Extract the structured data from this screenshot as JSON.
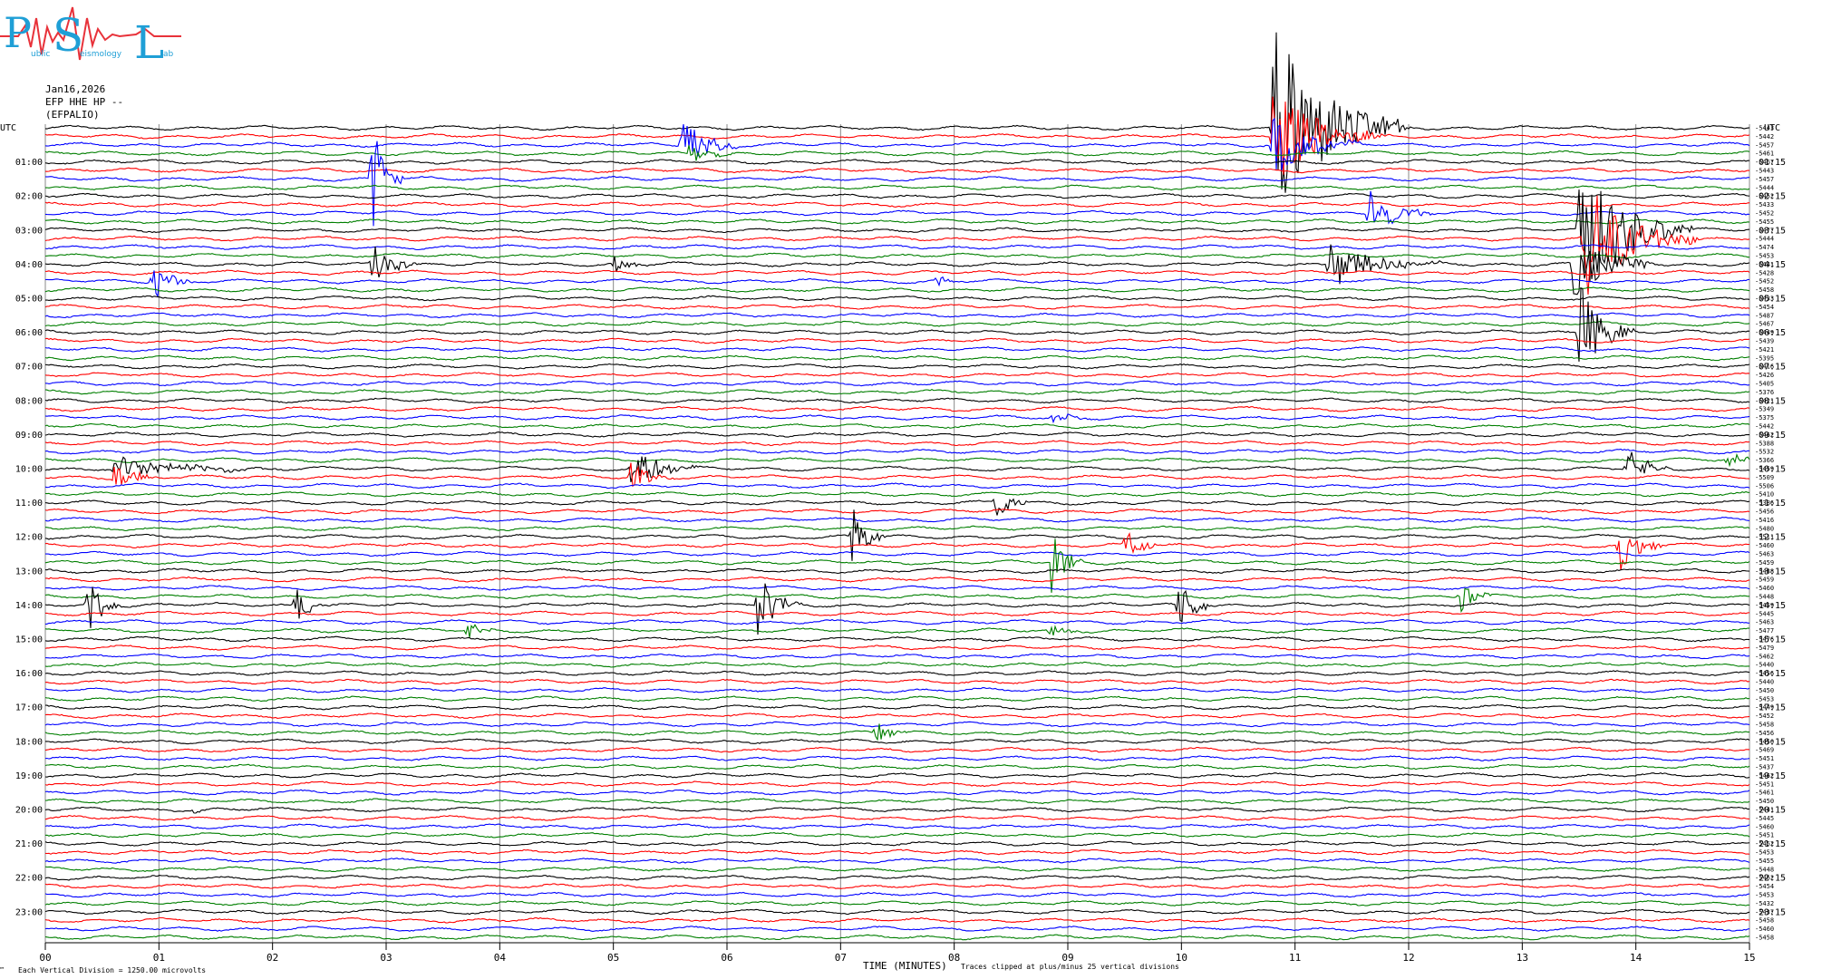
{
  "logo": {
    "letters": [
      "P",
      "S",
      "L"
    ],
    "small_words": [
      "ublic",
      "eismology",
      "ab"
    ],
    "colors": {
      "letters": "#1f9fd6",
      "waveform": "#e8323a"
    }
  },
  "header": {
    "date": "Jan16,2026",
    "channel": "EFP HHE HP --",
    "station": "(EFPALIO)"
  },
  "footer": {
    "scale": "Each Vertical Division = 1250.00 microvolts",
    "xlabel": "TIME (MINUTES)",
    "clip_note": "Traces clipped at plus/minus 25 vertical divisions",
    "corner": "™"
  },
  "colors": {
    "trace_cycle": [
      "#000000",
      "#ff0000",
      "#0000ff",
      "#007f00"
    ],
    "grid": "#888888"
  },
  "chart_data": {
    "type": "line",
    "subtype": "helicorder",
    "xlabel": "TIME (MINUTES)",
    "xlim": [
      0,
      15
    ],
    "xticks": [
      "00",
      "01",
      "02",
      "03",
      "04",
      "05",
      "06",
      "07",
      "08",
      "09",
      "10",
      "11",
      "12",
      "13",
      "14",
      "15"
    ],
    "left_title": "UTC",
    "right_title": "UTC",
    "left_labels": [
      "01:00",
      "02:00",
      "03:00",
      "04:00",
      "05:00",
      "06:00",
      "07:00",
      "08:00",
      "09:00",
      "10:00",
      "11:00",
      "12:00",
      "13:00",
      "14:00",
      "15:00",
      "16:00",
      "17:00",
      "18:00",
      "19:00",
      "20:00",
      "21:00",
      "22:00",
      "23:00"
    ],
    "right_labels": [
      "01:15",
      "02:15",
      "03:15",
      "04:15",
      "05:15",
      "06:15",
      "07:15",
      "08:15",
      "09:15",
      "10:15",
      "11:15",
      "12:15",
      "13:15",
      "14:15",
      "15:15",
      "16:15",
      "17:15",
      "18:15",
      "19:15",
      "20:15",
      "21:15",
      "22:15",
      "23:15"
    ],
    "trace_count": 96,
    "trace_offsets": [
      "-5443",
      "-5442",
      "-5457",
      "-5461",
      "-5467",
      "-5443",
      "-5457",
      "-5444",
      "-5452",
      "-5433",
      "-5452",
      "-5455",
      "-5477",
      "-5444",
      "-5474",
      "-5453",
      "-5441",
      "-5428",
      "-5452",
      "-5458",
      "-5433",
      "-5454",
      "-5487",
      "-5467",
      "-5449",
      "-5439",
      "-5421",
      "-5395",
      "-5416",
      "-5426",
      "-5405",
      "-5376",
      "-5421",
      "-5349",
      "-5375",
      "-5442",
      "-5462",
      "-5388",
      "-5532",
      "-5366",
      "-5459",
      "-5509",
      "-5506",
      "-5410",
      "-5386",
      "-5456",
      "-5416",
      "-5480",
      "-5511",
      "-5460",
      "-5463",
      "-5459",
      "-5488",
      "-5459",
      "-5460",
      "-5448",
      "-5459",
      "-5445",
      "-5463",
      "-5477",
      "-5476",
      "-5479",
      "-5462",
      "-5440",
      "-5456",
      "-5440",
      "-5450",
      "-5453",
      "-5449",
      "-5452",
      "-5458",
      "-5456",
      "-5450",
      "-5469",
      "-5451",
      "-5437",
      "-5462",
      "-5451",
      "-5461",
      "-5450",
      "-5441",
      "-5445",
      "-5460",
      "-5451",
      "-5452",
      "-5453",
      "-5455",
      "-5448",
      "-5462",
      "-5454",
      "-5453",
      "-5432",
      "-5437",
      "-5458",
      "-5460",
      "-5458"
    ],
    "events": [
      {
        "trace": 2,
        "minute": 5.6,
        "amp": 40,
        "dur": 0.5
      },
      {
        "trace": 3,
        "minute": 5.65,
        "amp": 12,
        "dur": 0.5
      },
      {
        "trace": 0,
        "minute": 10.8,
        "amp": 120,
        "dur": 1.2
      },
      {
        "trace": 1,
        "minute": 10.8,
        "amp": 60,
        "dur": 1.0
      },
      {
        "trace": 2,
        "minute": 10.8,
        "amp": 40,
        "dur": 0.8
      },
      {
        "trace": 6,
        "minute": 2.87,
        "amp": 70,
        "dur": 0.3
      },
      {
        "trace": 10,
        "minute": 11.65,
        "amp": 30,
        "dur": 0.6
      },
      {
        "trace": 12,
        "minute": 13.5,
        "amp": 90,
        "dur": 1.0
      },
      {
        "trace": 13,
        "minute": 13.55,
        "amp": 70,
        "dur": 1.0
      },
      {
        "trace": 16,
        "minute": 2.87,
        "amp": 35,
        "dur": 0.4
      },
      {
        "trace": 16,
        "minute": 5.0,
        "amp": 12,
        "dur": 0.3
      },
      {
        "trace": 16,
        "minute": 11.3,
        "amp": 28,
        "dur": 1.0
      },
      {
        "trace": 16,
        "minute": 13.45,
        "amp": 40,
        "dur": 0.8
      },
      {
        "trace": 18,
        "minute": 0.93,
        "amp": 25,
        "dur": 0.4
      },
      {
        "trace": 18,
        "minute": 7.85,
        "amp": 8,
        "dur": 0.2
      },
      {
        "trace": 24,
        "minute": 13.5,
        "amp": 60,
        "dur": 0.5
      },
      {
        "trace": 34,
        "minute": 8.85,
        "amp": 10,
        "dur": 0.4
      },
      {
        "trace": 40,
        "minute": 0.6,
        "amp": 14,
        "dur": 1.5
      },
      {
        "trace": 40,
        "minute": 5.15,
        "amp": 30,
        "dur": 0.6
      },
      {
        "trace": 40,
        "minute": 13.9,
        "amp": 30,
        "dur": 0.4
      },
      {
        "trace": 41,
        "minute": 0.6,
        "amp": 20,
        "dur": 0.4
      },
      {
        "trace": 41,
        "minute": 5.15,
        "amp": 18,
        "dur": 0.4
      },
      {
        "trace": 39,
        "minute": 14.8,
        "amp": 10,
        "dur": 0.4
      },
      {
        "trace": 44,
        "minute": 8.35,
        "amp": 30,
        "dur": 0.3
      },
      {
        "trace": 48,
        "minute": 7.1,
        "amp": 40,
        "dur": 0.3
      },
      {
        "trace": 49,
        "minute": 9.5,
        "amp": 30,
        "dur": 0.3
      },
      {
        "trace": 49,
        "minute": 13.85,
        "amp": 35,
        "dur": 0.4
      },
      {
        "trace": 51,
        "minute": 8.85,
        "amp": 40,
        "dur": 0.3
      },
      {
        "trace": 56,
        "minute": 0.36,
        "amp": 45,
        "dur": 0.3
      },
      {
        "trace": 56,
        "minute": 2.2,
        "amp": 22,
        "dur": 0.3
      },
      {
        "trace": 56,
        "minute": 6.27,
        "amp": 40,
        "dur": 0.4
      },
      {
        "trace": 56,
        "minute": 9.97,
        "amp": 35,
        "dur": 0.3
      },
      {
        "trace": 55,
        "minute": 12.45,
        "amp": 20,
        "dur": 0.3
      },
      {
        "trace": 59,
        "minute": 3.7,
        "amp": 12,
        "dur": 0.3
      },
      {
        "trace": 59,
        "minute": 8.83,
        "amp": 15,
        "dur": 0.3
      },
      {
        "trace": 71,
        "minute": 7.3,
        "amp": 15,
        "dur": 0.3
      },
      {
        "trace": 80,
        "minute": 1.3,
        "amp": 5,
        "dur": 0.2
      }
    ]
  }
}
